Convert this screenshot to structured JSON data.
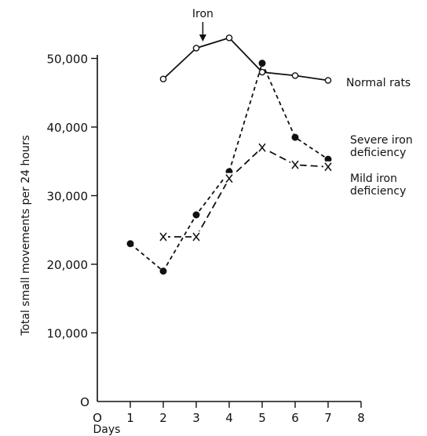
{
  "chart_data": {
    "type": "line",
    "xlabel": "Days",
    "ylabel": "Total small movements per 24 hours",
    "xlim": [
      0,
      8
    ],
    "ylim": [
      0,
      55000
    ],
    "x_ticks": [
      "O",
      "1",
      "2",
      "3",
      "4",
      "5",
      "6",
      "7",
      "8"
    ],
    "y_ticks": [
      "O",
      "10,000",
      "20,000",
      "30,000",
      "40,000",
      "50,000"
    ],
    "grid": false,
    "series": [
      {
        "name": "Normal rats",
        "label_lines": [
          "Normal rats"
        ],
        "marker": "open-circle",
        "line_style": "solid",
        "x": [
          2,
          3,
          4,
          5,
          6,
          7
        ],
        "y": [
          47000,
          51500,
          53000,
          48000,
          47500,
          46800
        ]
      },
      {
        "name": "Severe iron deficiency",
        "label_lines": [
          "Severe iron",
          "deficiency"
        ],
        "marker": "filled-circle",
        "line_style": "short-dash",
        "x": [
          1,
          2,
          3,
          4,
          5,
          6,
          7
        ],
        "y": [
          23000,
          19000,
          27200,
          33500,
          49300,
          38500,
          35300
        ]
      },
      {
        "name": "Mild iron deficiency",
        "label_lines": [
          "Mild iron",
          "deficiency"
        ],
        "marker": "x",
        "line_style": "long-dash",
        "x": [
          2,
          3,
          4,
          5,
          6,
          7
        ],
        "y": [
          24000,
          24000,
          32500,
          37000,
          34500,
          34200
        ]
      }
    ],
    "annotations": [
      {
        "text": "Iron",
        "x": 3.2,
        "arrow": "down"
      }
    ]
  }
}
